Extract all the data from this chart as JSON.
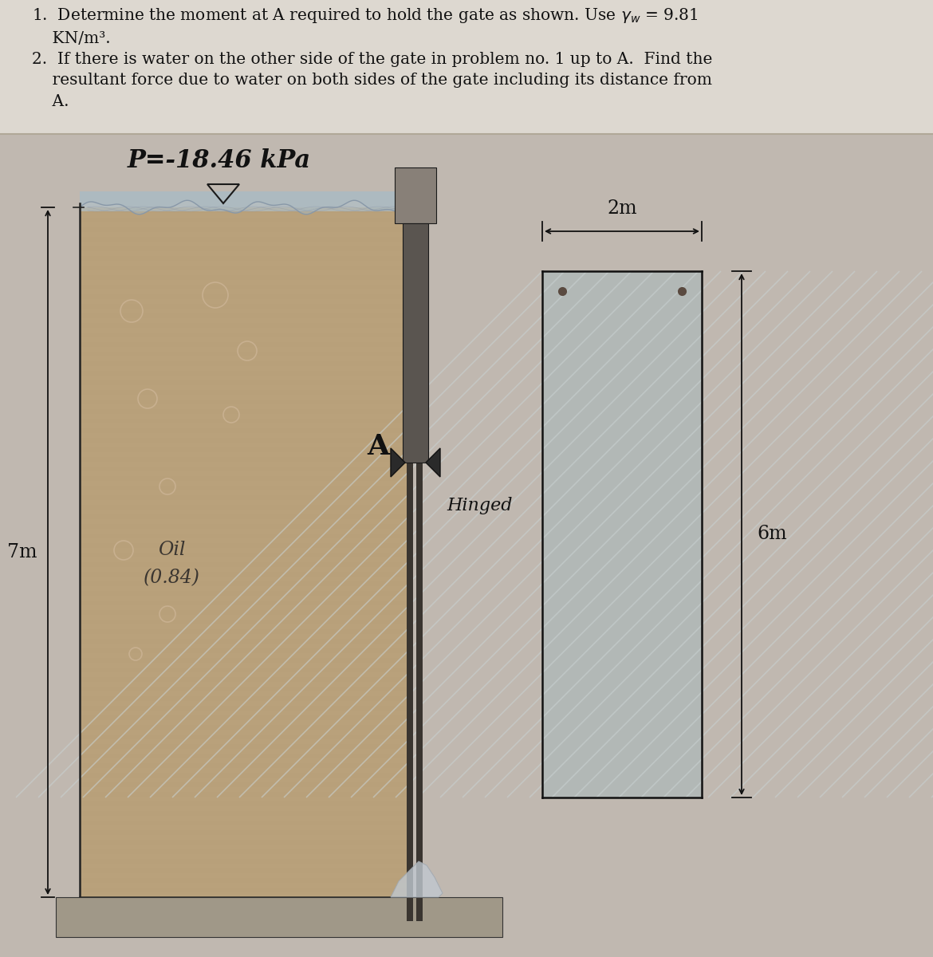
{
  "bg_color": "#c8c0b8",
  "header_bg": "#ddd8d0",
  "text_color": "#111111",
  "pressure_label": "P=-18.46 kPa",
  "oil_label_line1": "Oil",
  "oil_label_line2": "(0.84)",
  "label_7m": "7m",
  "label_6m": "6m",
  "label_2m": "2m",
  "label_A": "A",
  "label_hinged": "Hinged",
  "oil_fill_color": "#b8a07a",
  "oil_bubble_color": "#c8b898",
  "water_ripple_color": "#a0b8c0",
  "gate_color": "#3a3530",
  "water_fill_color": "#a8b8c0",
  "dim_color": "#111111",
  "tank_outline_color": "#222222",
  "floor_color": "#a09888"
}
